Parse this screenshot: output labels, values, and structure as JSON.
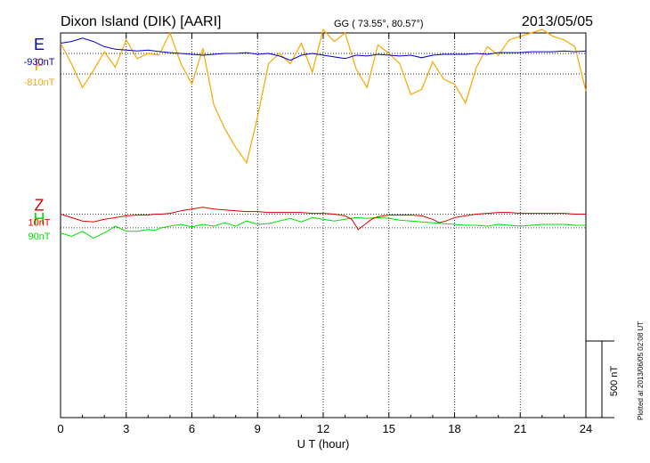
{
  "header": {
    "station": "Dixon Island (DIK)  [AARI]",
    "coords": "GG ( 73.55°,  80.57°)",
    "date": "2013/05/05"
  },
  "footer": {
    "plotted": "Plotted at 2013/06/05 02:08  UT"
  },
  "colors": {
    "F": "#f5a800",
    "H": "#00e000",
    "E": "#0000cc",
    "Z": "#dd0000",
    "axis": "#000000",
    "grid": "#000000"
  },
  "chart_data": {
    "type": "line",
    "xlabel": "U T (hour)",
    "xlim": [
      0,
      24
    ],
    "xticks": [
      0,
      3,
      6,
      9,
      12,
      15,
      18,
      21,
      24
    ],
    "ylim_nT": [
      -1200,
      1050
    ],
    "scale_bar": {
      "label": "500 nT",
      "value": 500
    },
    "series": [
      {
        "name": "F",
        "baseline_label": "-810nT",
        "offset_nT": 810,
        "x": [
          0,
          0.5,
          1,
          1.5,
          2,
          2.5,
          3,
          3.5,
          4,
          4.5,
          5,
          5.5,
          6,
          6.5,
          7,
          7.5,
          8,
          8.5,
          9,
          9.5,
          10,
          10.5,
          11,
          11.5,
          12,
          12.5,
          13,
          13.5,
          14,
          14.5,
          15,
          15.5,
          16,
          16.5,
          17,
          17.5,
          18,
          18.5,
          19,
          19.5,
          20,
          20.5,
          21,
          21.5,
          22,
          22.5,
          23,
          23.5,
          24
        ],
        "values": [
          180,
          60,
          -80,
          20,
          130,
          40,
          200,
          90,
          120,
          110,
          240,
          60,
          -60,
          150,
          -180,
          -320,
          -430,
          -520,
          -250,
          60,
          120,
          60,
          180,
          10,
          260,
          190,
          240,
          30,
          -80,
          170,
          120,
          60,
          -120,
          -90,
          70,
          -30,
          -60,
          -170,
          40,
          160,
          110,
          200,
          220,
          240,
          260,
          220,
          200,
          160,
          -100
        ]
      },
      {
        "name": "H",
        "baseline_label": "90nT",
        "offset_nT": -90,
        "x": [
          0,
          0.5,
          1,
          1.5,
          2,
          2.5,
          3,
          3.5,
          4,
          4.3,
          4.6,
          5,
          5.5,
          6,
          6.5,
          7,
          7.5,
          8,
          8.5,
          9,
          9.5,
          10,
          10.5,
          11,
          11.5,
          12,
          12.5,
          13,
          13.5,
          14,
          14.5,
          15,
          15.5,
          16,
          16.5,
          17,
          17.5,
          18,
          18.5,
          19,
          19.5,
          20,
          20.5,
          21,
          21.5,
          22,
          22.5,
          23,
          23.5,
          24
        ],
        "values": [
          -30,
          -50,
          -20,
          -60,
          -30,
          10,
          -20,
          -20,
          -10,
          -15,
          0,
          10,
          20,
          5,
          20,
          10,
          30,
          10,
          40,
          20,
          25,
          40,
          55,
          35,
          60,
          50,
          40,
          50,
          60,
          55,
          60,
          55,
          45,
          40,
          35,
          30,
          25,
          20,
          15,
          15,
          10,
          20,
          15,
          10,
          15,
          20,
          20,
          20,
          15,
          15
        ]
      },
      {
        "name": "E",
        "baseline_label": "-930nT",
        "offset_nT": 930,
        "x": [
          0,
          0.5,
          1,
          1.5,
          2,
          2.5,
          3,
          3.5,
          4,
          4.3,
          4.6,
          5,
          5.5,
          6,
          6.5,
          7,
          7.5,
          8,
          8.5,
          9,
          9.5,
          10,
          10.5,
          11,
          11.5,
          12,
          12.5,
          13,
          13.5,
          14,
          14.5,
          15,
          15.5,
          16,
          16.5,
          17,
          17.5,
          18,
          18.5,
          19,
          19.5,
          20,
          20.5,
          21,
          21.5,
          22,
          22.5,
          23,
          23.5,
          24
        ],
        "values": [
          60,
          70,
          90,
          70,
          40,
          25,
          20,
          15,
          20,
          15,
          10,
          5,
          0,
          -5,
          -10,
          -5,
          0,
          0,
          5,
          -5,
          0,
          -15,
          -40,
          -10,
          0,
          -10,
          -20,
          -30,
          -10,
          -15,
          -5,
          -10,
          -15,
          -10,
          -25,
          -10,
          -5,
          -5,
          -5,
          0,
          -5,
          5,
          5,
          5,
          10,
          10,
          10,
          15,
          10,
          15
        ]
      },
      {
        "name": "Z",
        "baseline_label": "10nT",
        "offset_nT": -10,
        "x": [
          0,
          0.5,
          1,
          1.5,
          2,
          2.5,
          3,
          3.5,
          4,
          4.3,
          4.6,
          5,
          5.5,
          6,
          6.5,
          7,
          7.5,
          8,
          8.5,
          9,
          9.5,
          10,
          10.5,
          11,
          11.5,
          12,
          12.5,
          13,
          13.3,
          13.6,
          13.9,
          14.2,
          14.5,
          15,
          15.5,
          16,
          16.5,
          17,
          17.3,
          17.6,
          18,
          18.5,
          19,
          19.5,
          20,
          20.5,
          21,
          21.5,
          22,
          22.5,
          23,
          23.5,
          24
        ],
        "values": [
          0,
          -20,
          -40,
          -45,
          -30,
          -20,
          -10,
          -5,
          -5,
          0,
          0,
          5,
          20,
          30,
          40,
          30,
          25,
          20,
          15,
          15,
          10,
          10,
          10,
          10,
          5,
          5,
          0,
          -10,
          -30,
          -90,
          -60,
          -30,
          -15,
          -5,
          -5,
          -5,
          -10,
          -30,
          -50,
          -40,
          -20,
          -10,
          0,
          5,
          10,
          10,
          5,
          5,
          5,
          5,
          5,
          0,
          0
        ]
      }
    ]
  }
}
